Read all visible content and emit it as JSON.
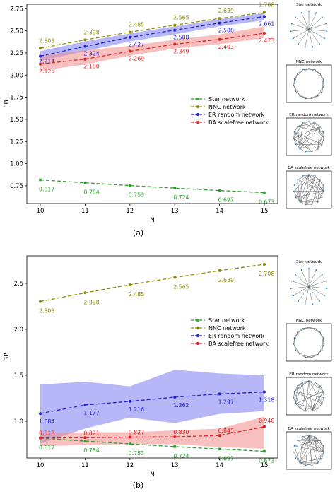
{
  "figure": {
    "captions": [
      "(a)",
      "(b)"
    ]
  },
  "chart_data": [
    {
      "type": "line",
      "panel": "(a)",
      "xlabel": "N",
      "ylabel": "FB",
      "x": [
        10,
        11,
        12,
        13,
        14,
        15
      ],
      "xlim": [
        9.7,
        15.3
      ],
      "ylim": [
        0.55,
        2.8
      ],
      "xticks": [
        "10",
        "11",
        "12",
        "13",
        "14",
        "15"
      ],
      "yticks": [
        0.75,
        1.0,
        1.25,
        1.5,
        1.75,
        2.0,
        2.25,
        2.5,
        2.75
      ],
      "ytick_labels": [
        "0.75",
        "1.00",
        "1.25",
        "1.50",
        "1.75",
        "2.00",
        "2.25",
        "2.50",
        "2.75"
      ],
      "grid": false,
      "legend": "center-right",
      "series": [
        {
          "name": "Star network",
          "color": "#2ca02c",
          "marker": "square",
          "values": [
            0.817,
            0.784,
            0.753,
            0.724,
            0.697,
            0.673
          ],
          "labels": [
            "0.817",
            "0.784",
            "0.753",
            "0.724",
            "0.697",
            "0.673"
          ]
        },
        {
          "name": "NNC network",
          "color": "#8c8c00",
          "marker": "circle",
          "values": [
            2.303,
            2.398,
            2.485,
            2.565,
            2.639,
            2.708
          ],
          "labels": [
            "2.303",
            "2.398",
            "2.485",
            "2.565",
            "2.639",
            "2.708"
          ]
        },
        {
          "name": "ER random network",
          "color": "#1f1fd0",
          "marker": "circle",
          "values": [
            2.214,
            2.324,
            2.427,
            2.508,
            2.588,
            2.661
          ],
          "labels": [
            "2.214",
            "2.324",
            "2.427",
            "2.508",
            "2.588",
            "2.661"
          ],
          "band_low": [
            2.16,
            2.27,
            2.38,
            2.46,
            2.55,
            2.62
          ],
          "band_high": [
            2.27,
            2.38,
            2.47,
            2.55,
            2.63,
            2.7
          ],
          "band_color": "#7b7bf2"
        },
        {
          "name": "BA scalefree network",
          "color": "#e02020",
          "marker": "circle",
          "values": [
            2.125,
            2.18,
            2.269,
            2.349,
            2.403,
            2.473
          ],
          "labels": [
            "2.125",
            "2.180",
            "2.269",
            "2.349",
            "2.403",
            "2.473"
          ],
          "band_low": [
            2.05,
            2.12,
            2.22,
            2.3,
            2.35,
            2.42
          ],
          "band_high": [
            2.22,
            2.28,
            2.33,
            2.4,
            2.46,
            2.55
          ],
          "band_color": "#f28a8a"
        }
      ]
    },
    {
      "type": "line",
      "panel": "(b)",
      "xlabel": "N",
      "ylabel": "SP",
      "x": [
        10,
        11,
        12,
        13,
        14,
        15
      ],
      "xlim": [
        9.7,
        15.3
      ],
      "ylim": [
        0.6,
        2.8
      ],
      "xticks": [
        "10",
        "11",
        "12",
        "13",
        "14",
        "15"
      ],
      "yticks": [
        1.0,
        1.5,
        2.0,
        2.5
      ],
      "ytick_labels": [
        "1.0",
        "1.5",
        "2.0",
        "2.5"
      ],
      "grid": false,
      "legend": "center-right",
      "series": [
        {
          "name": "Star network",
          "color": "#2ca02c",
          "marker": "square",
          "values": [
            0.817,
            0.784,
            0.753,
            0.724,
            0.697,
            0.673
          ],
          "labels": [
            "0.817",
            "0.784",
            "0.753",
            "0.724",
            "0.697",
            "0.673"
          ]
        },
        {
          "name": "NNC network",
          "color": "#8c8c00",
          "marker": "circle",
          "values": [
            2.303,
            2.398,
            2.485,
            2.565,
            2.639,
            2.708
          ],
          "labels": [
            "2.303",
            "2.398",
            "2.485",
            "2.565",
            "2.639",
            "2.708"
          ]
        },
        {
          "name": "ER random network",
          "color": "#1f1fd0",
          "marker": "circle",
          "values": [
            1.084,
            1.177,
            1.216,
            1.262,
            1.297,
            1.318
          ],
          "labels": [
            "1.084",
            "1.177",
            "1.216",
            "1.262",
            "1.297",
            "1.318"
          ],
          "band_low": [
            0.76,
            0.92,
            1.04,
            0.98,
            1.08,
            1.11
          ],
          "band_high": [
            1.4,
            1.43,
            1.38,
            1.56,
            1.52,
            1.5
          ],
          "band_color": "#7b7bf2"
        },
        {
          "name": "BA scalefree network",
          "color": "#e02020",
          "marker": "circle",
          "values": [
            0.818,
            0.821,
            0.827,
            0.83,
            0.845,
            0.94
          ],
          "labels": [
            "0.818",
            "0.821",
            "0.827",
            "0.830",
            "0.845",
            "0.940"
          ],
          "band_low": [
            0.73,
            0.74,
            0.75,
            0.75,
            0.72,
            0.7
          ],
          "band_high": [
            0.87,
            0.88,
            0.88,
            0.9,
            0.92,
            1.05
          ],
          "band_color": "#f28a8a"
        }
      ]
    }
  ],
  "thumbnails": [
    [
      {
        "title": "Star network",
        "kind": "star",
        "framed": false
      },
      {
        "title": "NNC network",
        "kind": "ring",
        "framed": true
      },
      {
        "title": "ER random network",
        "kind": "random",
        "framed": true
      },
      {
        "title": "BA scalefree network",
        "kind": "scalefree",
        "framed": true
      }
    ],
    [
      {
        "title": "Star network",
        "kind": "star",
        "framed": false
      },
      {
        "title": "NNC network",
        "kind": "ring",
        "framed": true
      },
      {
        "title": "ER random network",
        "kind": "random",
        "framed": true
      },
      {
        "title": "BA scalefree network",
        "kind": "scalefree",
        "framed": true
      }
    ]
  ]
}
